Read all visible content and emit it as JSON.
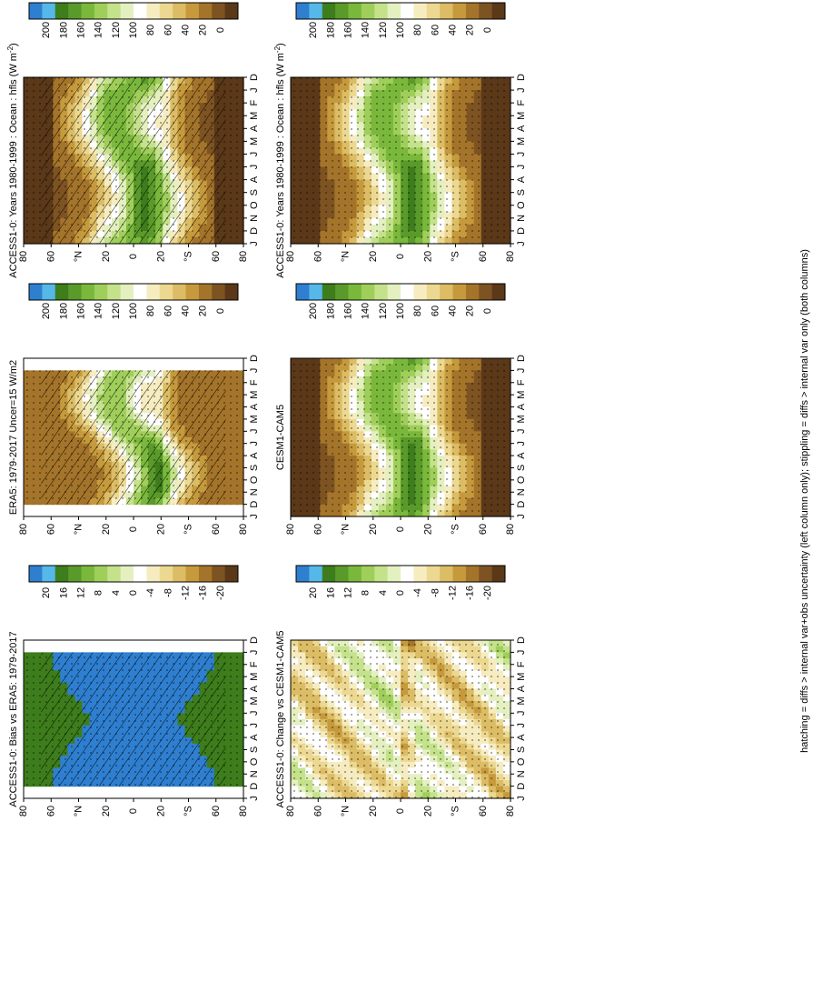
{
  "caption": "hatching = diffs > internal var+obs uncertainty (left column only); stippling = diffs > internal var only (both columns)",
  "month_labels": [
    "D",
    "J",
    "F",
    "M",
    "A",
    "M",
    "J",
    "J",
    "A",
    "S",
    "O",
    "N",
    "D",
    "J"
  ],
  "lat_labels": [
    "80",
    "60",
    "°N",
    "20",
    "0",
    "20",
    "°S",
    "60",
    "80"
  ],
  "abs_colorbar": {
    "labels": [
      "200",
      "180",
      "160",
      "140",
      "120",
      "100",
      "80",
      "60",
      "40",
      "20",
      "0"
    ],
    "colors": [
      "#2f7fd0",
      "#55b8e8",
      "#3d7d1c",
      "#5a9a2a",
      "#7ab83c",
      "#9fcf5a",
      "#c4e28a",
      "#e4f0c0",
      "#ffffff",
      "#f6ecc0",
      "#ecd890",
      "#dcbc64",
      "#c69a3c",
      "#a4742a",
      "#7e5322",
      "#5a3818"
    ]
  },
  "diff_colorbar": {
    "labels": [
      "20",
      "16",
      "12",
      "8",
      "4",
      "0",
      "-4",
      "-8",
      "-12",
      "-16",
      "-20"
    ],
    "colors": [
      "#2f7fd0",
      "#55b8e8",
      "#3d7d1c",
      "#5a9a2a",
      "#7ab83c",
      "#9fcf5a",
      "#c4e28a",
      "#e4f0c0",
      "#ffffff",
      "#f6ecc0",
      "#ecd890",
      "#dcbc64",
      "#c69a3c",
      "#a4742a",
      "#7e5322",
      "#5a3818"
    ]
  },
  "chart_data": [
    {
      "type": "heatmap",
      "title": "ACCESS1-0: Years 1980-1999 : Ocean : hfls (W m",
      "title_sup": "-2",
      "title_tail": ")",
      "x": [
        "D",
        "J",
        "F",
        "M",
        "A",
        "M",
        "J",
        "J",
        "A",
        "S",
        "O",
        "N",
        "D",
        "J"
      ],
      "y": [
        "80",
        "60",
        "°N",
        "20",
        "0",
        "20",
        "°S",
        "60",
        "80"
      ],
      "variant": "model",
      "hatching": true,
      "stippling": true,
      "colorbar": "abs",
      "zlim": [
        0,
        200
      ]
    },
    {
      "type": "heatmap",
      "title": "ERA5: 1979-2017 Uncer=15 W/m2",
      "x": [
        "D",
        "J",
        "F",
        "M",
        "A",
        "M",
        "J",
        "J",
        "A",
        "S",
        "O",
        "N",
        "D",
        "J"
      ],
      "y": [
        "80",
        "60",
        "°N",
        "20",
        "0",
        "20",
        "°S",
        "60",
        "80"
      ],
      "variant": "obs",
      "hatching": true,
      "stippling": true,
      "colorbar": "abs",
      "zlim": [
        0,
        200
      ]
    },
    {
      "type": "heatmap",
      "title": "ACCESS1-0: Bias vs ERA5: 1979-2017",
      "x": [
        "D",
        "J",
        "F",
        "M",
        "A",
        "M",
        "J",
        "J",
        "A",
        "S",
        "O",
        "N",
        "D",
        "J"
      ],
      "y": [
        "80",
        "60",
        "°N",
        "20",
        "0",
        "20",
        "°S",
        "60",
        "80"
      ],
      "variant": "bias",
      "hatching": true,
      "stippling": true,
      "colorbar": "diff",
      "zlim": [
        -20,
        20
      ]
    },
    {
      "type": "heatmap",
      "title": "ACCESS1-0: Years 1980-1999 : Ocean : hfls (W m",
      "title_sup": "-2",
      "title_tail": ")",
      "x": [
        "D",
        "J",
        "F",
        "M",
        "A",
        "M",
        "J",
        "J",
        "A",
        "S",
        "O",
        "N",
        "D",
        "J"
      ],
      "y": [
        "80",
        "60",
        "°N",
        "20",
        "0",
        "20",
        "°S",
        "60",
        "80"
      ],
      "variant": "model",
      "hatching": false,
      "stippling": true,
      "colorbar": "abs",
      "zlim": [
        0,
        200
      ]
    },
    {
      "type": "heatmap",
      "title": "CESM1-CAM5",
      "x": [
        "D",
        "J",
        "F",
        "M",
        "A",
        "M",
        "J",
        "J",
        "A",
        "S",
        "O",
        "N",
        "D",
        "J"
      ],
      "y": [
        "80",
        "60",
        "°N",
        "20",
        "0",
        "20",
        "°S",
        "60",
        "80"
      ],
      "variant": "model2",
      "hatching": false,
      "stippling": true,
      "colorbar": "abs",
      "zlim": [
        0,
        200
      ]
    },
    {
      "type": "heatmap",
      "title": "ACCESS1-0: Change vs CESM1-CAM5",
      "x": [
        "D",
        "J",
        "F",
        "M",
        "A",
        "M",
        "J",
        "J",
        "A",
        "S",
        "O",
        "N",
        "D",
        "J"
      ],
      "y": [
        "80",
        "60",
        "°N",
        "20",
        "0",
        "20",
        "°S",
        "60",
        "80"
      ],
      "variant": "change",
      "hatching": false,
      "stippling": true,
      "colorbar": "diff",
      "zlim": [
        -20,
        20
      ]
    }
  ]
}
